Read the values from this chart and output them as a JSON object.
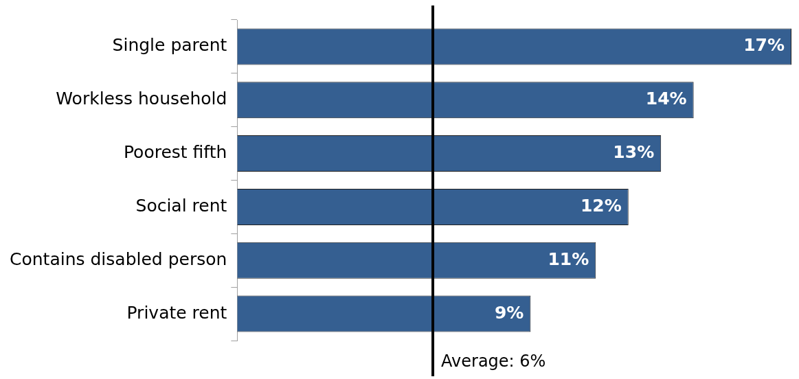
{
  "chart_data": {
    "type": "bar",
    "orientation": "horizontal",
    "categories": [
      "Single parent",
      "Workless household",
      "Poorest fifth",
      "Social rent",
      "Contains disabled person",
      "Private rent"
    ],
    "values": [
      17,
      14,
      13,
      12,
      11,
      9
    ],
    "value_labels": [
      "17%",
      "14%",
      "13%",
      "12%",
      "11%",
      "9%"
    ],
    "color": "#355f91",
    "ref_lines": [
      {
        "axis": "x",
        "value": 6,
        "label": "Average: 6%",
        "color": "#000000"
      }
    ],
    "legend": false
  }
}
